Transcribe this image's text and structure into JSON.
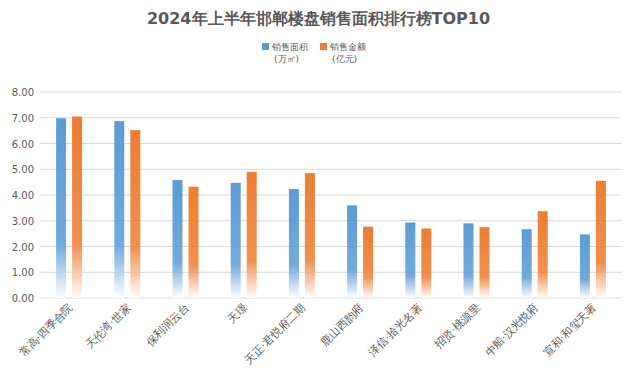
{
  "chart_data": {
    "type": "bar",
    "title": "2024年上半年邯郸楼盘销售面积排行榜TOP10",
    "categories": [
      "常高·四季合院",
      "天伦湾·世家",
      "保利润云台",
      "天璟",
      "天正·君悦府二期",
      "鹿山西韵府",
      "泽信·拾光名著",
      "招贤·桃源里",
      "中船·汉光悦府",
      "宣和·和玺天著"
    ],
    "series": [
      {
        "name": "销售面积(万㎡)",
        "color": "#5b9bd5",
        "values": [
          6.98,
          6.87,
          4.58,
          4.47,
          4.23,
          3.6,
          2.93,
          2.9,
          2.67,
          2.47
        ]
      },
      {
        "name": "销售金额(亿元)",
        "color": "#ed7d31",
        "values": [
          7.05,
          6.52,
          4.32,
          4.9,
          4.85,
          2.77,
          2.7,
          2.75,
          3.37,
          4.55
        ]
      }
    ],
    "ylim": [
      0,
      8
    ],
    "yticks": [
      {
        "value": 0,
        "label": "0.00"
      },
      {
        "value": 1,
        "label": "1.00"
      },
      {
        "value": 2,
        "label": "2.00"
      },
      {
        "value": 3,
        "label": "3.00"
      },
      {
        "value": 4,
        "label": "4.00"
      },
      {
        "value": 5,
        "label": "5.00"
      },
      {
        "value": 6,
        "label": "6.00"
      },
      {
        "value": 7,
        "label": "7.00"
      },
      {
        "value": 8,
        "label": "8.00"
      }
    ],
    "grid": true,
    "legend": "top"
  }
}
